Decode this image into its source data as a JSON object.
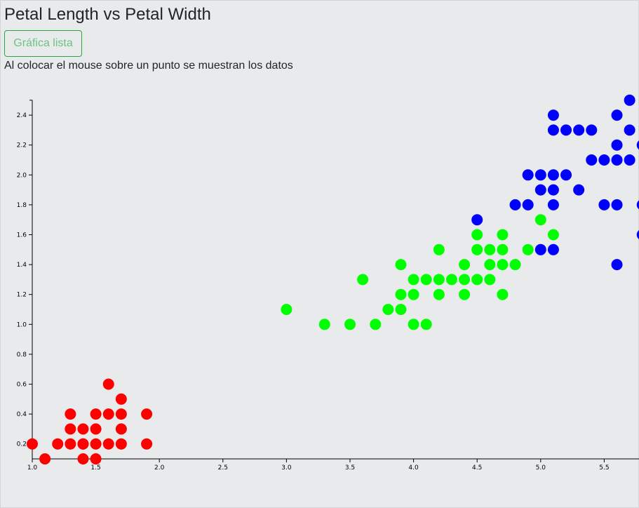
{
  "page": {
    "title": "Petal Length vs Petal Width",
    "button_label": "Gráfica lista",
    "hint": "Al colocar el mouse sobre un punto se muestran los datos"
  },
  "chart_data": {
    "type": "scatter",
    "title": "Petal Length vs Petal Width",
    "xlabel": "",
    "ylabel": "",
    "xlim": [
      1.0,
      5.8
    ],
    "ylim": [
      0.1,
      2.5
    ],
    "grid": false,
    "legend": "none",
    "x_ticks": [
      "1.0",
      "1.5",
      "2.0",
      "2.5",
      "3.0",
      "3.5",
      "4.0",
      "4.5",
      "5.0",
      "5.5"
    ],
    "y_ticks": [
      "0.2",
      "0.4",
      "0.6",
      "0.8",
      "1.0",
      "1.2",
      "1.4",
      "1.6",
      "1.8",
      "2.0",
      "2.2",
      "2.4"
    ],
    "series": [
      {
        "color": "#ff0000",
        "x": [
          1.0,
          1.1,
          1.2,
          1.3,
          1.3,
          1.3,
          1.4,
          1.4,
          1.4,
          1.5,
          1.5,
          1.5,
          1.6,
          1.6,
          1.6,
          1.7,
          1.7,
          1.7,
          1.7,
          1.9,
          1.9,
          1.4,
          1.5
        ],
        "y": [
          0.2,
          0.1,
          0.2,
          0.2,
          0.3,
          0.4,
          0.1,
          0.2,
          0.3,
          0.1,
          0.2,
          0.4,
          0.2,
          0.4,
          0.6,
          0.2,
          0.3,
          0.4,
          0.5,
          0.2,
          0.4,
          0.2,
          0.3
        ]
      },
      {
        "color": "#00ff00",
        "x": [
          3.0,
          3.3,
          3.5,
          3.6,
          3.7,
          3.8,
          3.9,
          3.9,
          3.9,
          4.0,
          4.0,
          4.0,
          4.1,
          4.1,
          4.2,
          4.2,
          4.2,
          4.3,
          4.4,
          4.4,
          4.4,
          4.5,
          4.5,
          4.5,
          4.6,
          4.6,
          4.6,
          4.7,
          4.7,
          4.7,
          4.7,
          4.8,
          4.9,
          5.0,
          5.1
        ],
        "y": [
          1.1,
          1.0,
          1.0,
          1.3,
          1.0,
          1.1,
          1.1,
          1.2,
          1.4,
          1.0,
          1.2,
          1.3,
          1.0,
          1.3,
          1.2,
          1.3,
          1.5,
          1.3,
          1.2,
          1.3,
          1.4,
          1.3,
          1.5,
          1.6,
          1.3,
          1.4,
          1.5,
          1.2,
          1.4,
          1.5,
          1.6,
          1.4,
          1.5,
          1.7,
          1.6
        ]
      },
      {
        "color": "#0000ff",
        "x": [
          4.5,
          4.8,
          4.9,
          4.9,
          5.0,
          5.0,
          5.0,
          5.1,
          5.1,
          5.1,
          5.1,
          5.1,
          5.1,
          5.2,
          5.2,
          5.3,
          5.3,
          5.4,
          5.4,
          5.5,
          5.5,
          5.6,
          5.6,
          5.6,
          5.6,
          5.6,
          5.7,
          5.7,
          5.7,
          5.8,
          5.8,
          5.8
        ],
        "y": [
          1.7,
          1.8,
          1.8,
          2.0,
          1.5,
          1.9,
          2.0,
          1.5,
          1.8,
          1.9,
          2.0,
          2.3,
          2.4,
          2.0,
          2.3,
          1.9,
          2.3,
          2.1,
          2.3,
          1.8,
          2.1,
          1.4,
          1.8,
          2.1,
          2.2,
          2.4,
          2.1,
          2.3,
          2.5,
          1.6,
          1.8,
          2.2
        ]
      }
    ]
  }
}
